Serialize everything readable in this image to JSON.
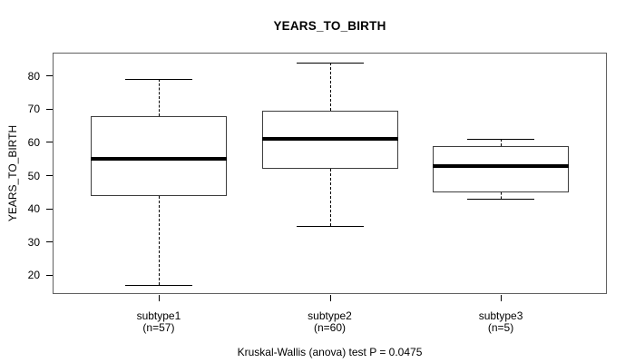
{
  "chart_data": {
    "type": "boxplot",
    "title": "YEARS_TO_BIRTH",
    "ylabel": "YEARS_TO_BIRTH",
    "caption": "Kruskal-Wallis (anova) test P = 0.0475",
    "ylim": [
      14.4,
      87.0
    ],
    "yticks": [
      20,
      30,
      40,
      50,
      60,
      70,
      80
    ],
    "grid": false,
    "legend": "none",
    "groups": [
      {
        "label": "subtype1",
        "sublabel": "(n=57)",
        "n": 57,
        "stats": {
          "whisker_low": 17,
          "q1": 44,
          "median": 55,
          "q3": 68,
          "whisker_high": 79
        }
      },
      {
        "label": "subtype2",
        "sublabel": "(n=60)",
        "n": 60,
        "stats": {
          "whisker_low": 35,
          "q1": 52,
          "median": 61,
          "q3": 69.5,
          "whisker_high": 84
        }
      },
      {
        "label": "subtype3",
        "sublabel": "(n=5)",
        "n": 5,
        "stats": {
          "whisker_low": 43,
          "q1": 45,
          "median": 53,
          "q3": 59,
          "whisker_high": 61
        }
      }
    ],
    "colors": {
      "line": "#000000",
      "box_border": "#3d3d3d",
      "box_fill": "#ffffff",
      "plot_border": "#606060",
      "background": "#ffffff",
      "text": "#000000"
    }
  }
}
